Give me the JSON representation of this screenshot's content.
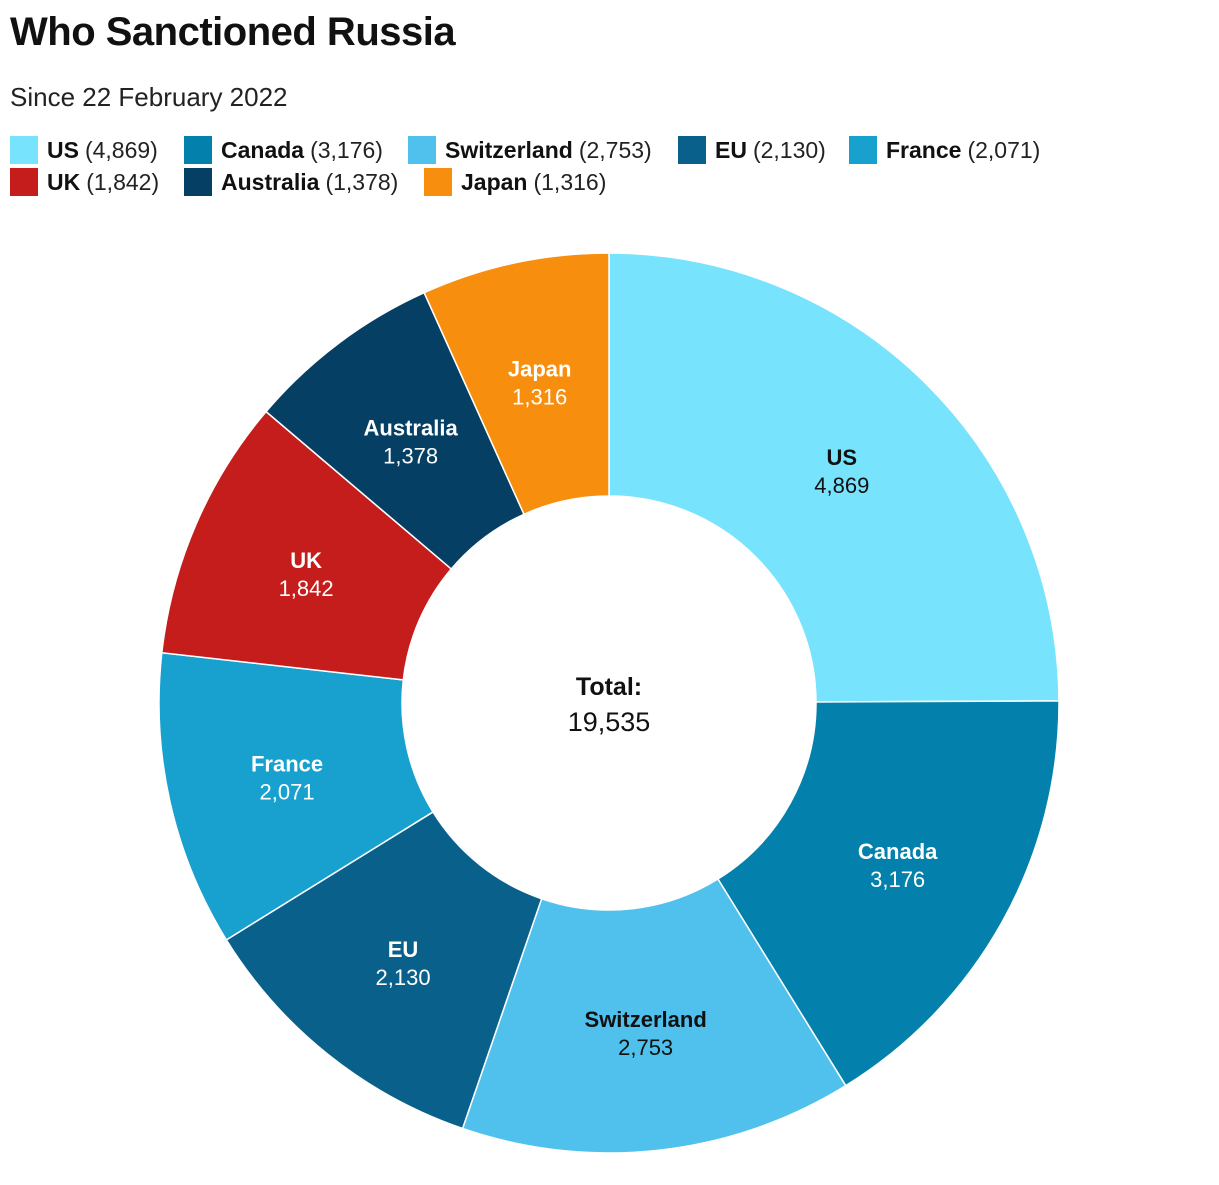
{
  "title": "Who Sanctioned Russia",
  "subtitle": "Since 22 February 2022",
  "chart_data": {
    "type": "pie",
    "style": "donut",
    "slices": [
      {
        "name": "US",
        "value": 4869,
        "label": "4,869",
        "legend_value": "(4,869)",
        "color": "#78e3fd",
        "text_color": "#111111"
      },
      {
        "name": "Canada",
        "value": 3176,
        "label": "3,176",
        "legend_value": "(3,176)",
        "color": "#0380ab",
        "text_color": "#ffffff"
      },
      {
        "name": "Switzerland",
        "value": 2753,
        "label": "2,753",
        "legend_value": "(2,753)",
        "color": "#4fc1ec",
        "text_color": "#111111"
      },
      {
        "name": "EU",
        "value": 2130,
        "label": "2,130",
        "legend_value": "(2,130)",
        "color": "#09618b",
        "text_color": "#ffffff"
      },
      {
        "name": "France",
        "value": 2071,
        "label": "2,071",
        "legend_value": "(2,071)",
        "color": "#18a1cf",
        "text_color": "#ffffff"
      },
      {
        "name": "UK",
        "value": 1842,
        "label": "1,842",
        "legend_value": "(1,842)",
        "color": "#c51c1c",
        "text_color": "#ffffff"
      },
      {
        "name": "Australia",
        "value": 1378,
        "label": "1,378",
        "legend_value": "(1,378)",
        "color": "#053f63",
        "text_color": "#ffffff"
      },
      {
        "name": "Japan",
        "value": 1316,
        "label": "1,316",
        "legend_value": "(1,316)",
        "color": "#f88e0d",
        "text_color": "#ffffff"
      }
    ],
    "center_label": "Total:",
    "center_value": "19,535",
    "legend_placement": "top"
  }
}
